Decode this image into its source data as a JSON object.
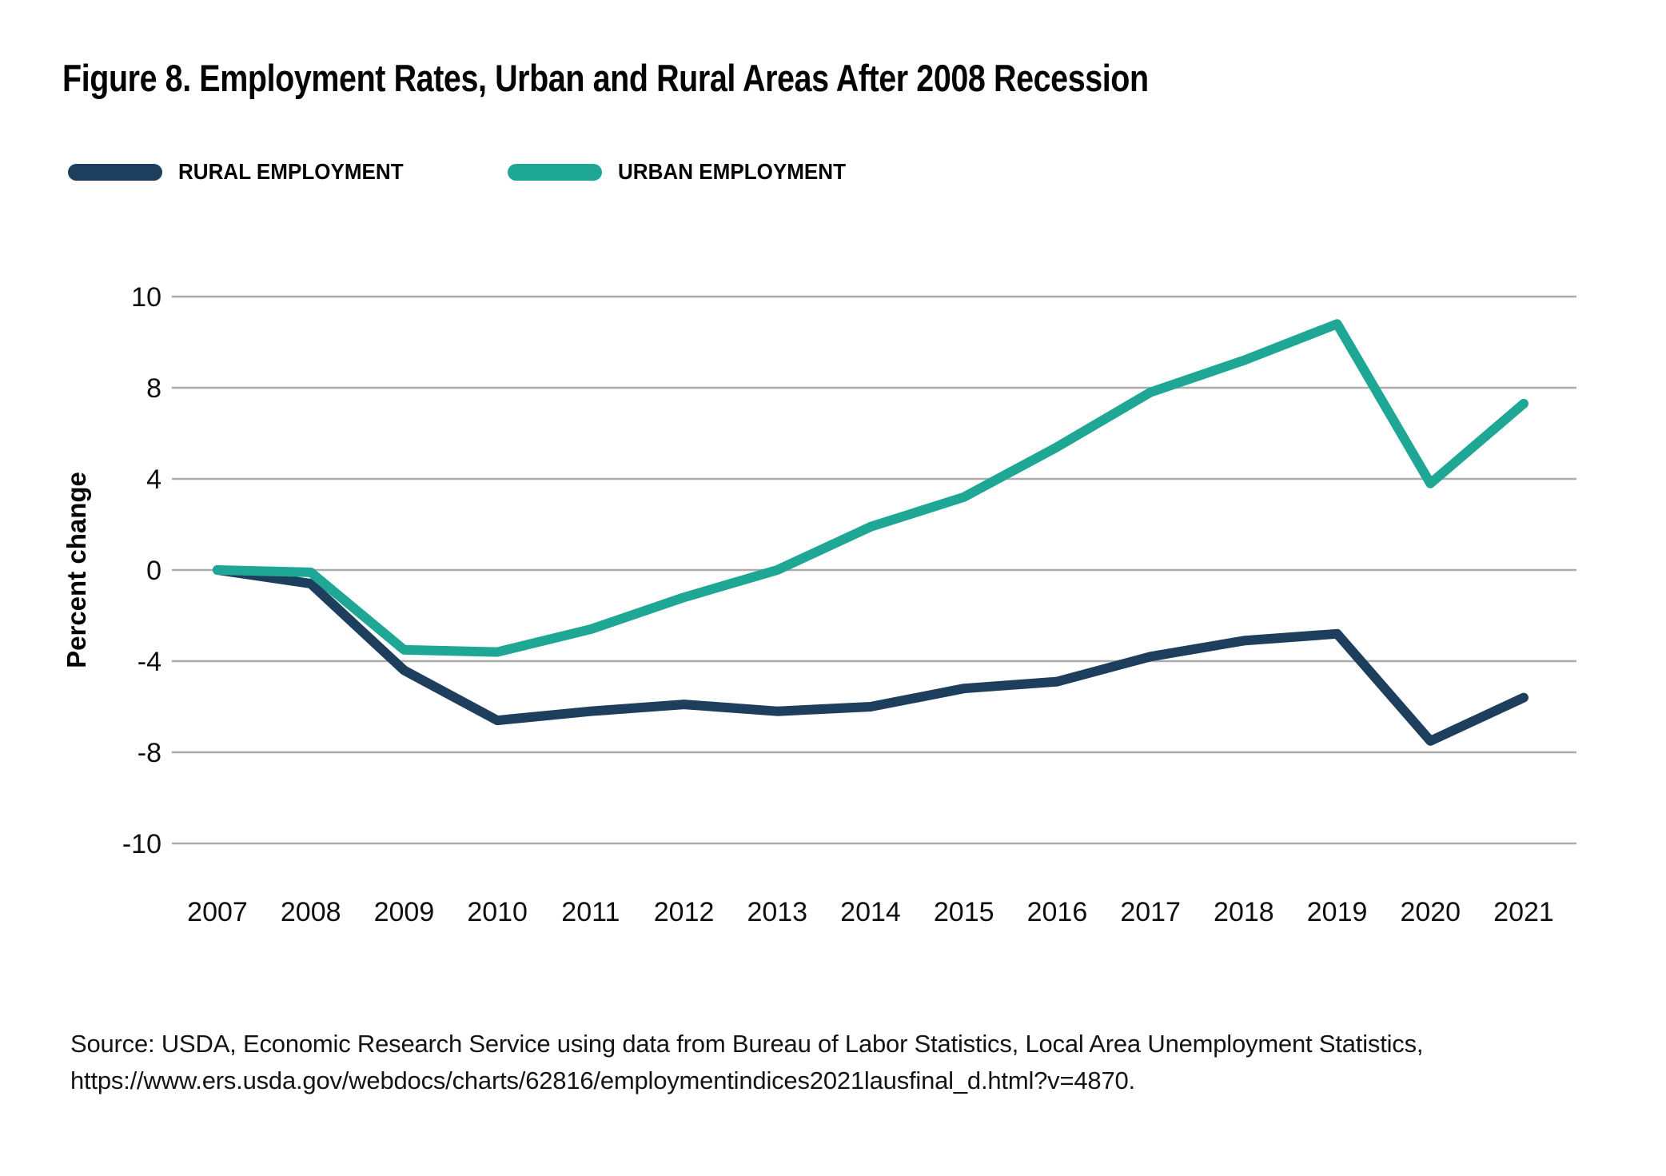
{
  "title": "Figure 8. Employment Rates, Urban and Rural Areas After 2008 Recession",
  "legend": [
    {
      "label": "RURAL EMPLOYMENT",
      "color": "#1d3e5c"
    },
    {
      "label": "URBAN EMPLOYMENT",
      "color": "#1fa795"
    }
  ],
  "chart_data": {
    "type": "line",
    "title": "Figure 8. Employment Rates, Urban and Rural Areas After 2008 Recession",
    "x": [
      2007,
      2008,
      2009,
      2010,
      2011,
      2012,
      2013,
      2014,
      2015,
      2016,
      2017,
      2018,
      2019,
      2020,
      2021
    ],
    "series": [
      {
        "name": "RURAL EMPLOYMENT",
        "color": "#1d3e5c",
        "values": [
          0.0,
          -0.6,
          -4.4,
          -6.6,
          -6.2,
          -5.9,
          -6.2,
          -6.0,
          -5.2,
          -4.9,
          -3.8,
          -3.1,
          -2.8,
          -7.5,
          -5.6
        ]
      },
      {
        "name": "URBAN EMPLOYMENT",
        "color": "#1fa795",
        "values": [
          0.0,
          -0.1,
          -3.5,
          -3.6,
          -2.6,
          -1.2,
          0.0,
          1.9,
          3.2,
          5.4,
          7.8,
          8.6,
          9.4,
          3.8,
          7.3
        ]
      }
    ],
    "xlabel": "",
    "ylabel": "Percent change",
    "yticks": [
      10,
      8,
      4,
      0,
      -4,
      -8,
      -10
    ],
    "grid": true,
    "gridline_color": "#ababab",
    "legend_position": "top-left",
    "axis_note": "Y gridlines are evenly spaced at tick values 10, 8, 4, 0, -4, -8, -10 (non-uniform step as drawn in original figure)"
  },
  "source": {
    "line1": "Source: USDA, Economic Research Service using data from Bureau of Labor Statistics, Local Area Unemployment Statistics,",
    "line2": "https://www.ers.usda.gov/webdocs/charts/62816/employmentindices2021lausfinal_d.html?v=4870."
  }
}
